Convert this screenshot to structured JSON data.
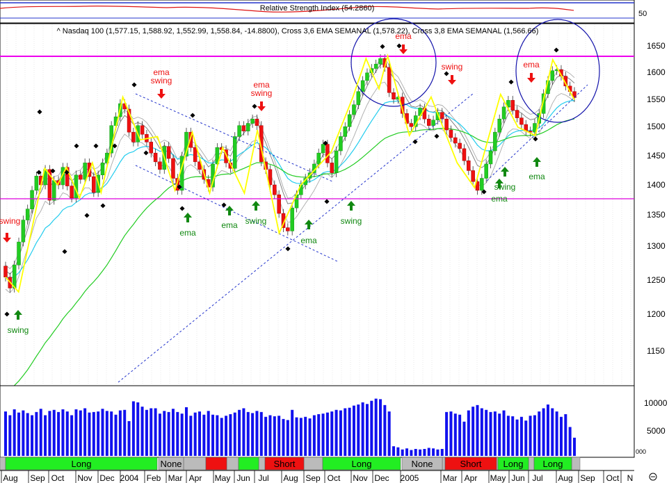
{
  "rsi_panel": {
    "title": "Relative Strength Index (54.2860)",
    "ticks": [
      "50"
    ]
  },
  "price_panel": {
    "title": "^ Nasdaq 100 (1,577.15, 1,588.92, 1,552.99, 1,558.84, -14.8800), Cross 3,6 EMA SEMANAL (1,578.22), Cross 3,8 EMA SEMANAL (1,566.66)",
    "yticks": [
      "1650",
      "1600",
      "1550",
      "1500",
      "1450",
      "1400",
      "1350",
      "1300",
      "1250",
      "1200",
      "1150"
    ]
  },
  "volume_panel": {
    "yticks": [
      "10000",
      "5000"
    ],
    "corner_label": "000"
  },
  "x_labels": [
    "Aug",
    "Sep",
    "Oct",
    "Nov",
    "Dec",
    "2004",
    "Feb",
    "Mar",
    "Apr",
    "May",
    "Jun",
    "Jul",
    "Aug",
    "Sep",
    "Oct",
    "Nov",
    "Dec",
    "2005",
    "Mar",
    "Apr",
    "May",
    "Jun",
    "Jul",
    "Aug",
    "Sep",
    "Oct",
    "N"
  ],
  "signals": [
    {
      "label": "Long",
      "type": "long"
    },
    {
      "label": "None",
      "type": "none"
    },
    {
      "label": "",
      "type": "short"
    },
    {
      "label": "",
      "type": "long"
    },
    {
      "label": "Short",
      "type": "short"
    },
    {
      "label": "Long",
      "type": "long"
    },
    {
      "label": "None",
      "type": "none"
    },
    {
      "label": "Short",
      "type": "short"
    },
    {
      "label": "Long",
      "type": "long"
    },
    {
      "label": "Long",
      "type": "long"
    }
  ],
  "annotations": [
    {
      "text": "swing",
      "color": "red"
    },
    {
      "text": "swing",
      "color": "green"
    },
    {
      "text": "ema",
      "color": "red"
    },
    {
      "text": "swing",
      "color": "red"
    },
    {
      "text": "ema",
      "color": "green"
    },
    {
      "text": "ema",
      "color": "green"
    },
    {
      "text": "ema",
      "color": "red"
    },
    {
      "text": "swing",
      "color": "red"
    },
    {
      "text": "swing",
      "color": "green"
    },
    {
      "text": "ema",
      "color": "green"
    },
    {
      "text": "swing",
      "color": "green"
    },
    {
      "text": "ema",
      "color": "red"
    },
    {
      "text": "swing",
      "color": "red"
    },
    {
      "text": "swing",
      "color": "green"
    },
    {
      "text": "ema",
      "color": "green"
    },
    {
      "text": "ema",
      "color": "red"
    },
    {
      "text": "ema",
      "color": "green"
    }
  ],
  "colors": {
    "up_candle": "#22cc22",
    "down_candle": "#ee1111",
    "price_line": "#ffff00",
    "ema_fast": "#22ccee",
    "ema_slow": "#22cc22",
    "envelope": "#999999",
    "resistance": "#ee00ee",
    "trend": "#2233cc",
    "volume": "#1111ee",
    "long": "#22ee22",
    "short": "#ee1111",
    "none": "#bbbbbb"
  },
  "chart_data": {
    "type": "candlestick",
    "period": "weekly",
    "x_range": [
      "2003-08",
      "2005-11"
    ],
    "ylim": [
      1100,
      1660
    ],
    "closes": [
      1232,
      1212,
      1254,
      1296,
      1336,
      1356,
      1390,
      1416,
      1400,
      1428,
      1372,
      1408,
      1400,
      1432,
      1398,
      1376,
      1418,
      1410,
      1440,
      1415,
      1386,
      1418,
      1440,
      1458,
      1508,
      1524,
      1548,
      1538,
      1496,
      1478,
      1508,
      1492,
      1478,
      1458,
      1442,
      1428,
      1470,
      1448,
      1412,
      1390,
      1452,
      1496,
      1468,
      1442,
      1428,
      1410,
      1396,
      1438,
      1468,
      1464,
      1440,
      1430,
      1488,
      1508,
      1498,
      1512,
      1520,
      1508,
      1442,
      1428,
      1400,
      1382,
      1348,
      1322,
      1316,
      1358,
      1382,
      1400,
      1412,
      1422,
      1438,
      1458,
      1474,
      1440,
      1422,
      1462,
      1488,
      1506,
      1528,
      1546,
      1570,
      1590,
      1604,
      1612,
      1620,
      1630,
      1614,
      1568,
      1556,
      1560,
      1530,
      1512,
      1506,
      1526,
      1540,
      1520,
      1508,
      1518,
      1532,
      1520,
      1500,
      1486,
      1476,
      1466,
      1444,
      1426,
      1406,
      1390,
      1412,
      1438,
      1462,
      1496,
      1520,
      1542,
      1554,
      1536,
      1522,
      1510,
      1498,
      1496,
      1512,
      1530,
      1566,
      1590,
      1608,
      1610,
      1598,
      1580,
      1570,
      1559
    ],
    "rsi_last": 54.286,
    "volume_units": "thousands",
    "volume": [
      8300,
      7600,
      8700,
      8100,
      8500,
      8000,
      7600,
      8200,
      8800,
      7600,
      8400,
      8600,
      8200,
      8700,
      8300,
      7600,
      8700,
      8500,
      8900,
      8100,
      8200,
      8300,
      8800,
      8400,
      8300,
      7700,
      8500,
      8600,
      6500,
      10200,
      10000,
      9200,
      8600,
      8900,
      8900,
      7900,
      8400,
      8200,
      8800,
      8200,
      7900,
      9100,
      7500,
      8100,
      8300,
      7700,
      8400,
      7700,
      7600,
      7100,
      7500,
      7800,
      8100,
      8600,
      8900,
      8200,
      8000,
      8400,
      8200,
      7300,
      7600,
      7400,
      7500,
      6900,
      6700,
      8600,
      7200,
      7100,
      7300,
      7000,
      7600,
      7800,
      7900,
      8100,
      8300,
      8600,
      8500,
      8900,
      9000,
      9400,
      9600,
      10000,
      9700,
      10300,
      10700,
      10600,
      9500,
      8300,
      1800,
      1600,
      1200,
      1400,
      1100,
      1300,
      1200,
      1300,
      1500,
      1400,
      1200,
      1300,
      8200,
      8300,
      7900,
      7700,
      6400,
      8500,
      9200,
      9500,
      8900,
      8600,
      8200,
      8300,
      7900,
      8500,
      7500,
      7400,
      6800,
      7300,
      6600,
      7500,
      7600,
      8300,
      8900,
      9600,
      8900,
      8300,
      7300,
      7800,
      5400,
      3400
    ]
  }
}
